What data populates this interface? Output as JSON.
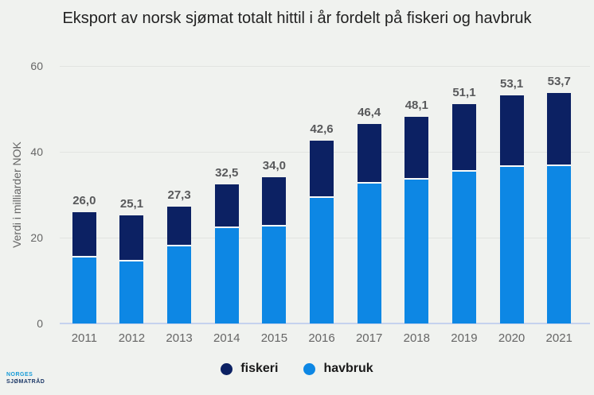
{
  "title": "Eksport av norsk sjømat totalt hittil i år fordelt på fiskeri og havbruk",
  "y_axis": {
    "label": "Verdi i milliarder NOK",
    "ticks": [
      0,
      20,
      40,
      60
    ],
    "max": 60
  },
  "legend": [
    {
      "label": "fiskeri",
      "color": "#0c2163"
    },
    {
      "label": "havbruk",
      "color": "#0d87e4"
    }
  ],
  "logo": {
    "line1": "NORGES",
    "line2": "SJØMATRÅD"
  },
  "colors": {
    "background": "#f0f2ef",
    "fiskeri": "#0c2163",
    "havbruk": "#0d87e4",
    "gridline": "#e2e4e1",
    "axis_line": "#c5d2ee",
    "title_text": "#222222",
    "axis_text": "#666666",
    "value_label_text": "#58595b"
  },
  "chart_data": {
    "type": "bar",
    "stacked": true,
    "title": "Eksport av norsk sjømat totalt hittil i år fordelt på fiskeri og havbruk",
    "xlabel": "",
    "ylabel": "Verdi i milliarder NOK",
    "ylim": [
      0,
      60
    ],
    "grid": true,
    "legend_position": "bottom",
    "categories": [
      "2011",
      "2012",
      "2013",
      "2014",
      "2015",
      "2016",
      "2017",
      "2018",
      "2019",
      "2020",
      "2021"
    ],
    "series": [
      {
        "name": "fiskeri",
        "color": "#0c2163",
        "values": [
          10.2,
          10.3,
          8.9,
          9.9,
          11.1,
          13.0,
          13.5,
          14.3,
          15.3,
          16.2,
          16.6
        ]
      },
      {
        "name": "havbruk",
        "color": "#0d87e4",
        "values": [
          15.8,
          14.8,
          18.4,
          22.6,
          22.9,
          29.6,
          32.9,
          33.8,
          35.8,
          36.9,
          37.1
        ]
      }
    ],
    "totals": [
      26.0,
      25.1,
      27.3,
      32.5,
      34.0,
      42.6,
      46.4,
      48.1,
      51.1,
      53.1,
      53.7
    ],
    "total_labels": [
      "26,0",
      "25,1",
      "27,3",
      "32,5",
      "34,0",
      "42,6",
      "46,4",
      "48,1",
      "51,1",
      "53,1",
      "53,7"
    ]
  }
}
